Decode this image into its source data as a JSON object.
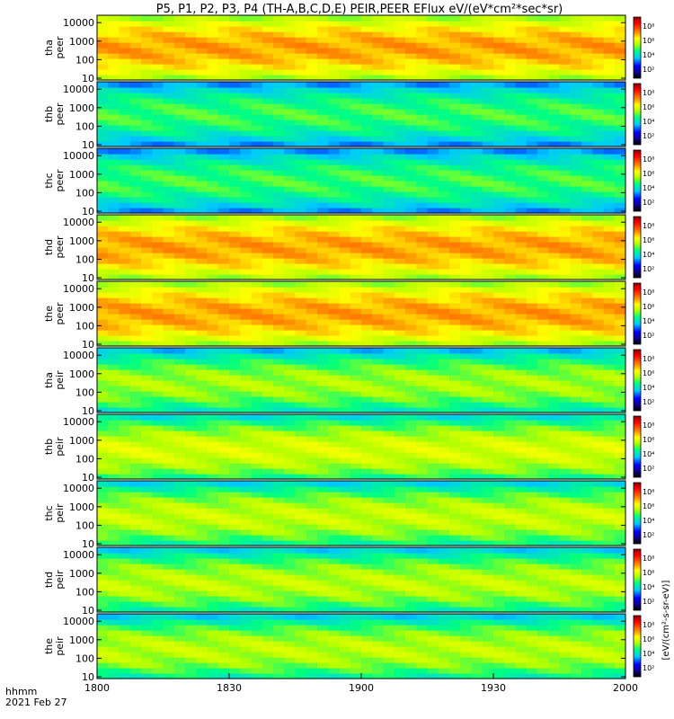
{
  "chart_data": {
    "type": "heatmap",
    "title": "P5, P1, P2, P3, P4 (TH-A,B,C,D,E) PEIR,PEER EFlux eV/(eV*cm²*sec*sr)",
    "x_title": "hhmm",
    "date_label": "2021 Feb 27",
    "x_ticks": [
      "1800",
      "1830",
      "1900",
      "1930",
      "2000"
    ],
    "x_range": [
      "1800",
      "2000"
    ],
    "colorbar_units": "[eV/(cm²-s-sr-eV)]",
    "colorbar_ticks": [
      "10²",
      "10⁴",
      "10⁶",
      "10⁸"
    ],
    "colormap": [
      "#000000",
      "#10008c",
      "#0000ff",
      "#00c8ff",
      "#00ff80",
      "#b0ff00",
      "#ffff00",
      "#ff8c00",
      "#ff0000",
      "#8c0000"
    ],
    "colormap_stops": [
      0,
      0.1,
      0.2,
      0.33,
      0.45,
      0.55,
      0.65,
      0.75,
      0.9,
      1
    ],
    "y_ticks": [
      "10",
      "100",
      "1000",
      "10000"
    ],
    "y_range": [
      8,
      25000
    ],
    "panels": [
      {
        "label": "tha",
        "species": "peer",
        "bg": 0.73
      },
      {
        "label": "thb",
        "species": "peer",
        "bg": 0.48
      },
      {
        "label": "thc",
        "species": "peer",
        "bg": 0.48
      },
      {
        "label": "thd",
        "species": "peer",
        "bg": 0.73
      },
      {
        "label": "the",
        "species": "peer",
        "bg": 0.73
      },
      {
        "label": "tha",
        "species": "peir",
        "bg": 0.55
      },
      {
        "label": "thb",
        "species": "peir",
        "bg": 0.6
      },
      {
        "label": "thc",
        "species": "peir",
        "bg": 0.58
      },
      {
        "label": "thd",
        "species": "peir",
        "bg": 0.57
      },
      {
        "label": "the",
        "species": "peir",
        "bg": 0.57
      }
    ]
  }
}
